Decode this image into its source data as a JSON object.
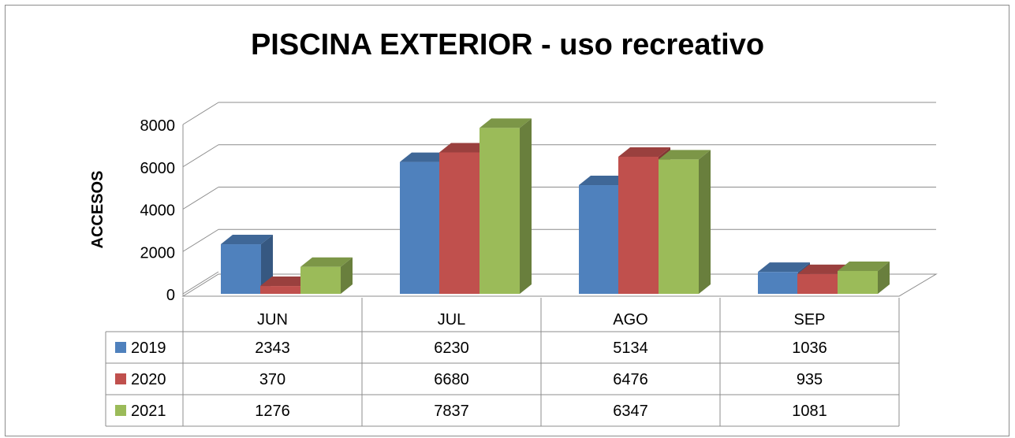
{
  "chart_data": {
    "type": "bar",
    "title": "PISCINA EXTERIOR - uso recreativo",
    "ylabel": "ACCESOS",
    "xlabel": "",
    "categories": [
      "JUN",
      "JUL",
      "AGO",
      "SEP"
    ],
    "ylim": [
      0,
      8000
    ],
    "yticks": [
      0,
      2000,
      4000,
      6000,
      8000
    ],
    "grid": true,
    "three_d": true,
    "legend": "data-table",
    "series": [
      {
        "name": "2019",
        "color": "#4f81bd",
        "values": [
          2343,
          6230,
          5134,
          1036
        ]
      },
      {
        "name": "2020",
        "color": "#c0504d",
        "values": [
          370,
          6680,
          6476,
          935
        ]
      },
      {
        "name": "2021",
        "color": "#9bbb59",
        "values": [
          1276,
          7837,
          6347,
          1081
        ]
      }
    ]
  }
}
